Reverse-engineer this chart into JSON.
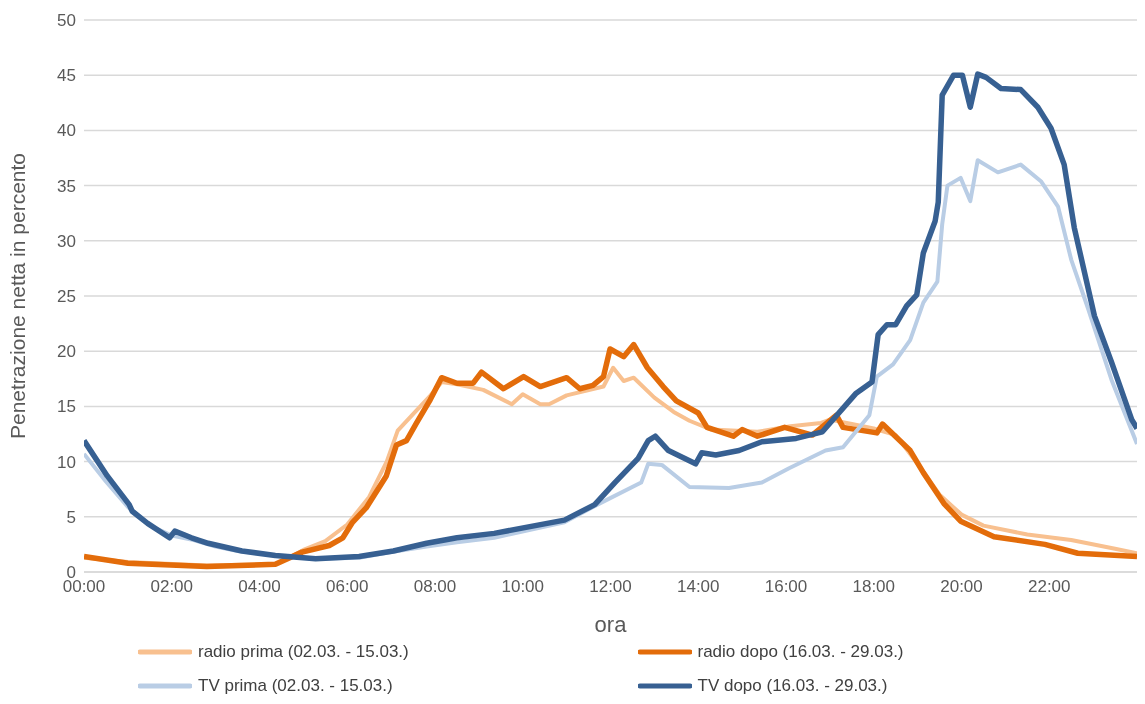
{
  "chart_data": {
    "type": "line",
    "xlabel": "ora",
    "ylabel": "Penetrazione netta in percento",
    "xlim": [
      0,
      24
    ],
    "xticks": [
      {
        "value": 0,
        "label": "00:00"
      },
      {
        "value": 2,
        "label": "02:00"
      },
      {
        "value": 4,
        "label": "04:00"
      },
      {
        "value": 6,
        "label": "06:00"
      },
      {
        "value": 8,
        "label": "08:00"
      },
      {
        "value": 10,
        "label": "10:00"
      },
      {
        "value": 12,
        "label": "12:00"
      },
      {
        "value": 14,
        "label": "14:00"
      },
      {
        "value": 16,
        "label": "16:00"
      },
      {
        "value": 18,
        "label": "18:00"
      },
      {
        "value": 20,
        "label": "20:00"
      },
      {
        "value": 22,
        "label": "22:00"
      }
    ],
    "ylim": [
      0,
      50
    ],
    "yticks": [
      0,
      5,
      10,
      15,
      20,
      25,
      30,
      35,
      40,
      45,
      50
    ],
    "grid": "y",
    "legend": "bottom",
    "marker": "none",
    "line_style": "solid",
    "series": [
      {
        "name": "radio prima (02.03. - 15.03.)",
        "color": "#f8c08f",
        "x": [
          0,
          1,
          2.8,
          4.4,
          5,
          5.5,
          6,
          6.5,
          6.9,
          7.15,
          7.5,
          7.9,
          8.15,
          8.5,
          9.1,
          9.75,
          10,
          10.4,
          10.6,
          11,
          11.84,
          12.06,
          12.3,
          12.53,
          13,
          13.44,
          13.8,
          14.3,
          15.35,
          16.1,
          16.8,
          17,
          17.5,
          18,
          18.5,
          19,
          19.5,
          20,
          20.5,
          21.5,
          22.5,
          23.5,
          24
        ],
        "values": [
          1.3,
          0.9,
          0.6,
          0.7,
          2,
          2.8,
          4.3,
          6.8,
          10,
          12.8,
          14.3,
          16,
          17.2,
          17,
          16.5,
          15.2,
          16.1,
          15.2,
          15.2,
          16,
          16.8,
          18.5,
          17.3,
          17.6,
          15.8,
          14.5,
          13.7,
          12.9,
          12.7,
          13.2,
          13.5,
          13.8,
          13.4,
          13,
          12.4,
          9.8,
          7,
          5.2,
          4.2,
          3.4,
          2.9,
          2.1,
          1.7
        ]
      },
      {
        "name": "radio dopo (16.03. - 29.03.)",
        "color": "#e36c0a",
        "x": [
          0,
          1,
          2.8,
          4.36,
          4.97,
          5.59,
          5.9,
          6.12,
          6.43,
          6.89,
          7.12,
          7.35,
          7.58,
          7.89,
          8.15,
          8.5,
          8.87,
          9.06,
          9.56,
          10.02,
          10.4,
          11,
          11.3,
          11.6,
          11.84,
          11.99,
          12.3,
          12.53,
          12.84,
          13.2,
          13.5,
          14,
          14.2,
          14.8,
          15,
          15.35,
          15.97,
          16.6,
          17.15,
          17.3,
          18.07,
          18.2,
          18.83,
          19.13,
          19.6,
          19.98,
          20.74,
          21.9,
          22.65,
          24
        ],
        "values": [
          1.4,
          0.8,
          0.5,
          0.7,
          1.8,
          2.4,
          3.1,
          4.5,
          5.8,
          8.7,
          11.5,
          11.9,
          13.5,
          15.6,
          17.6,
          17.1,
          17.1,
          18.1,
          16.6,
          17.7,
          16.8,
          17.6,
          16.6,
          16.9,
          17.7,
          20.2,
          19.5,
          20.6,
          18.5,
          16.8,
          15.5,
          14.4,
          13.1,
          12.3,
          12.9,
          12.3,
          13.1,
          12.4,
          14.2,
          13.1,
          12.6,
          13.4,
          11,
          9,
          6.2,
          4.6,
          3.2,
          2.5,
          1.7,
          1.4
        ]
      },
      {
        "name": "TV prima (02.03. - 15.03.)",
        "color": "#b9cde5",
        "x": [
          0,
          0.5,
          1,
          1.5,
          2,
          2.5,
          3,
          3.5,
          4.4,
          5.3,
          6.3,
          7,
          7.81,
          8.5,
          9.35,
          10.95,
          11.7,
          12.7,
          12.86,
          13.17,
          13.8,
          14.7,
          15.45,
          16.07,
          16.9,
          17.3,
          17.9,
          18.07,
          18.44,
          18.83,
          19.13,
          19.45,
          19.56,
          19.68,
          19.98,
          20.2,
          20.37,
          20.83,
          21.35,
          21.81,
          22.2,
          22.5,
          22.89,
          23.42,
          24
        ],
        "values": [
          10.7,
          8.2,
          5.9,
          4.2,
          3.3,
          2.9,
          2.3,
          1.9,
          1.5,
          1.2,
          1.3,
          1.8,
          2.3,
          2.7,
          3.1,
          4.5,
          6.1,
          8.1,
          9.8,
          9.7,
          7.7,
          7.6,
          8.1,
          9.4,
          11,
          11.3,
          14.2,
          17.7,
          18.8,
          21,
          24.4,
          26.3,
          31.5,
          35,
          35.7,
          33.6,
          37.3,
          36.2,
          36.9,
          35.4,
          33.1,
          28.3,
          23.8,
          17.4,
          11.6
        ]
      },
      {
        "name": "TV dopo (16.03. - 29.03.)",
        "color": "#376092",
        "x": [
          0,
          0.53,
          1.03,
          1.1,
          1.45,
          1.95,
          2.07,
          2.45,
          2.83,
          3.6,
          4.36,
          5.28,
          6.27,
          7.05,
          7.81,
          8.5,
          9.35,
          10.95,
          11.64,
          12.1,
          12.63,
          12.86,
          13.02,
          13.32,
          13.94,
          14.08,
          14.4,
          14.93,
          15.45,
          16.23,
          16.83,
          17.6,
          17.96,
          18.1,
          18.3,
          18.5,
          18.75,
          18.98,
          19.13,
          19.4,
          19.47,
          19.56,
          19.82,
          20.02,
          20.2,
          20.37,
          20.56,
          20.9,
          21.35,
          21.74,
          22.04,
          22.34,
          22.57,
          23.03,
          23.42,
          23.88,
          24
        ],
        "values": [
          11.9,
          8.7,
          6.1,
          5.5,
          4.4,
          3.1,
          3.7,
          3.1,
          2.6,
          1.9,
          1.5,
          1.2,
          1.4,
          1.9,
          2.6,
          3.1,
          3.5,
          4.7,
          6.1,
          8.1,
          10.3,
          11.9,
          12.3,
          11,
          9.8,
          10.8,
          10.6,
          11,
          11.8,
          12.1,
          12.7,
          16.2,
          17.2,
          21.5,
          22.4,
          22.4,
          24.1,
          25.1,
          28.9,
          31.8,
          33.5,
          43.2,
          45,
          45,
          42.1,
          45.1,
          44.8,
          43.8,
          43.7,
          42.1,
          40.2,
          36.9,
          31.2,
          23.2,
          19,
          13.8,
          13
        ]
      }
    ]
  }
}
